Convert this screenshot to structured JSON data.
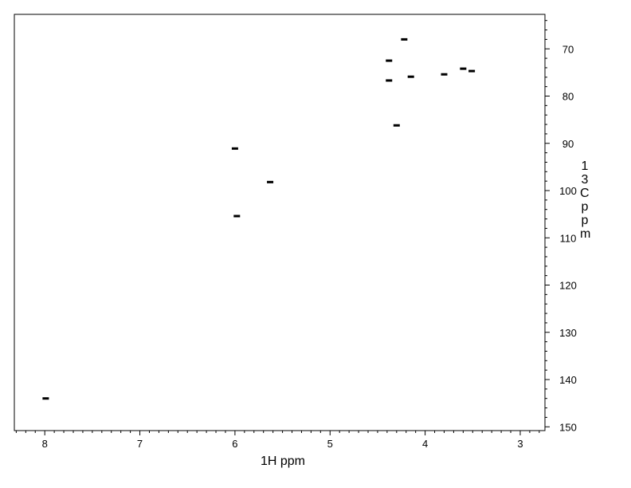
{
  "chart_data": {
    "type": "scatter",
    "title": "",
    "xlabel": "1H ppm",
    "ylabel": "13C ppm",
    "xlim": [
      8.32,
      2.74
    ],
    "ylim": [
      62.7,
      150.8
    ],
    "x_reversed": true,
    "y_reversed": true,
    "grid": false,
    "x_ticks": [
      8,
      7,
      6,
      5,
      4,
      3
    ],
    "y_ticks": [
      70,
      80,
      90,
      100,
      110,
      120,
      130,
      140,
      150
    ],
    "peak_color": "#000000",
    "points": [
      {
        "x": 7.99,
        "y": 144.0
      },
      {
        "x": 6.0,
        "y": 91.1
      },
      {
        "x": 5.98,
        "y": 105.4
      },
      {
        "x": 5.63,
        "y": 98.2
      },
      {
        "x": 4.38,
        "y": 72.5
      },
      {
        "x": 4.38,
        "y": 76.7
      },
      {
        "x": 4.3,
        "y": 86.2
      },
      {
        "x": 4.22,
        "y": 68.0
      },
      {
        "x": 4.15,
        "y": 75.9
      },
      {
        "x": 3.8,
        "y": 75.4
      },
      {
        "x": 3.6,
        "y": 74.2
      },
      {
        "x": 3.51,
        "y": 74.7
      }
    ]
  }
}
